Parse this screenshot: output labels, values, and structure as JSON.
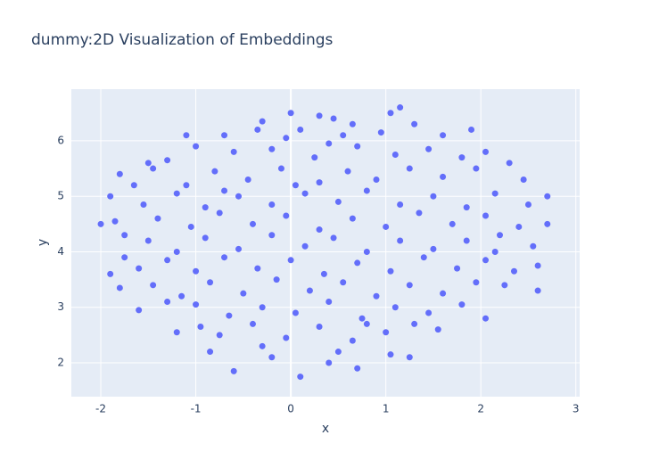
{
  "chart_data": {
    "type": "scatter",
    "title": "dummy:2D Visualization of Embeddings",
    "xlabel": "x",
    "ylabel": "y",
    "xlim": [
      -2.31,
      3.04
    ],
    "ylim": [
      1.39,
      6.93
    ],
    "xticks": [
      -2,
      -1,
      0,
      1,
      2,
      3
    ],
    "yticks": [
      2,
      3,
      4,
      5,
      6
    ],
    "grid": true,
    "series": [
      {
        "color": "#636efa",
        "x": [
          0.3,
          0.45,
          1.05,
          1.15,
          -0.3,
          0.0,
          0.65,
          -0.35,
          -1.1,
          -0.7,
          0.1,
          0.55,
          0.95,
          1.3,
          1.6,
          1.9,
          -0.05,
          -1.5,
          -1.0,
          -0.6,
          -0.2,
          0.25,
          0.7,
          1.1,
          1.45,
          1.8,
          2.05,
          -1.3,
          0.4,
          -1.8,
          -1.45,
          -1.1,
          -0.8,
          -0.45,
          -0.1,
          0.3,
          0.6,
          0.9,
          1.25,
          1.6,
          1.95,
          2.3,
          2.45,
          -1.65,
          0.05,
          -1.9,
          -1.55,
          -1.2,
          -0.9,
          -0.55,
          -0.2,
          0.15,
          0.5,
          0.8,
          1.15,
          1.5,
          1.85,
          2.15,
          2.5,
          2.7,
          -0.7,
          -2.0,
          -1.75,
          -1.4,
          -1.05,
          -0.75,
          -0.4,
          -0.05,
          0.3,
          0.65,
          1.0,
          1.35,
          1.7,
          2.05,
          2.4,
          2.7,
          2.2,
          -1.85,
          -1.5,
          -1.2,
          -0.9,
          -0.55,
          -0.2,
          0.15,
          0.45,
          0.8,
          1.15,
          1.5,
          1.85,
          2.15,
          2.55,
          -1.75,
          -1.6,
          -1.3,
          -1.0,
          -0.7,
          -0.35,
          0.0,
          0.35,
          0.7,
          1.05,
          1.4,
          1.75,
          2.05,
          2.35,
          2.6,
          -1.9,
          -1.8,
          -1.45,
          -1.15,
          -0.85,
          -0.5,
          -0.15,
          0.2,
          0.55,
          0.9,
          1.25,
          1.6,
          1.95,
          2.25,
          2.6,
          -1.6,
          -1.0,
          -0.65,
          -0.3,
          0.05,
          0.4,
          0.75,
          1.1,
          1.45,
          1.8,
          2.05,
          -1.3,
          -1.2,
          -0.75,
          -0.4,
          -0.05,
          0.3,
          0.65,
          1.0,
          1.3,
          1.55,
          -0.95,
          0.8,
          -0.85,
          -0.6,
          -0.2,
          0.1,
          0.4,
          0.7,
          1.05,
          1.25,
          -0.3,
          0.5
        ],
        "values": [
          6.45,
          6.4,
          6.5,
          6.6,
          6.35,
          6.5,
          6.3,
          6.2,
          6.1,
          6.1,
          6.2,
          6.1,
          6.15,
          6.3,
          6.1,
          6.2,
          6.05,
          5.6,
          5.9,
          5.8,
          5.85,
          5.7,
          5.9,
          5.75,
          5.85,
          5.7,
          5.8,
          5.65,
          5.95,
          5.4,
          5.5,
          5.2,
          5.45,
          5.3,
          5.5,
          5.25,
          5.45,
          5.3,
          5.5,
          5.35,
          5.5,
          5.6,
          5.3,
          5.2,
          5.2,
          5.0,
          4.85,
          5.05,
          4.8,
          5.0,
          4.85,
          5.05,
          4.9,
          5.1,
          4.85,
          5.0,
          4.8,
          5.05,
          4.85,
          5.0,
          5.1,
          4.5,
          4.3,
          4.6,
          4.45,
          4.7,
          4.5,
          4.65,
          4.4,
          4.6,
          4.45,
          4.7,
          4.5,
          4.65,
          4.45,
          4.5,
          4.3,
          4.55,
          4.2,
          4.0,
          4.25,
          4.05,
          4.3,
          4.1,
          4.25,
          4.0,
          4.2,
          4.05,
          4.2,
          4.0,
          4.1,
          3.9,
          3.7,
          3.85,
          3.65,
          3.9,
          3.7,
          3.85,
          3.6,
          3.8,
          3.65,
          3.9,
          3.7,
          3.85,
          3.65,
          3.75,
          3.6,
          3.35,
          3.4,
          3.2,
          3.45,
          3.25,
          3.5,
          3.3,
          3.45,
          3.2,
          3.4,
          3.25,
          3.45,
          3.4,
          3.3,
          2.95,
          3.05,
          2.85,
          3.0,
          2.9,
          3.1,
          2.8,
          3.0,
          2.9,
          3.05,
          2.8,
          3.1,
          2.55,
          2.5,
          2.7,
          2.45,
          2.65,
          2.4,
          2.55,
          2.7,
          2.6,
          2.65,
          2.7,
          2.2,
          1.85,
          2.1,
          1.75,
          2.0,
          1.9,
          2.15,
          2.1,
          2.3,
          2.2
        ]
      }
    ]
  }
}
